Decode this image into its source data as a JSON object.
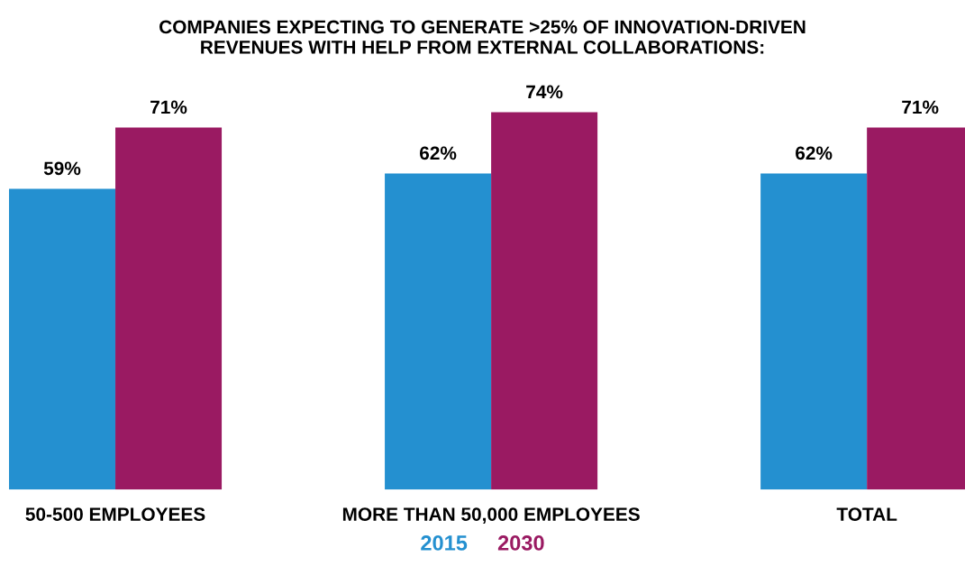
{
  "chart_data": {
    "type": "bar",
    "title": "COMPANIES EXPECTING TO GENERATE >25% OF INNOVATION-DRIVEN\nREVENUES WITH HELP FROM EXTERNAL COLLABORATIONS:",
    "categories": [
      "50-500 EMPLOYEES",
      "MORE THAN 50,000 EMPLOYEES",
      "TOTAL"
    ],
    "series": [
      {
        "name": "2015",
        "color": "#2490d0",
        "values": [
          59,
          62,
          62
        ],
        "value_labels": [
          "59%",
          "62%",
          "62%"
        ]
      },
      {
        "name": "2030",
        "color": "#9a1a62",
        "values": [
          71,
          74,
          71
        ],
        "value_labels": [
          "71%",
          "74%",
          "71%"
        ]
      }
    ],
    "tick_labels": "x",
    "legend": "bottom",
    "grid": false
  }
}
